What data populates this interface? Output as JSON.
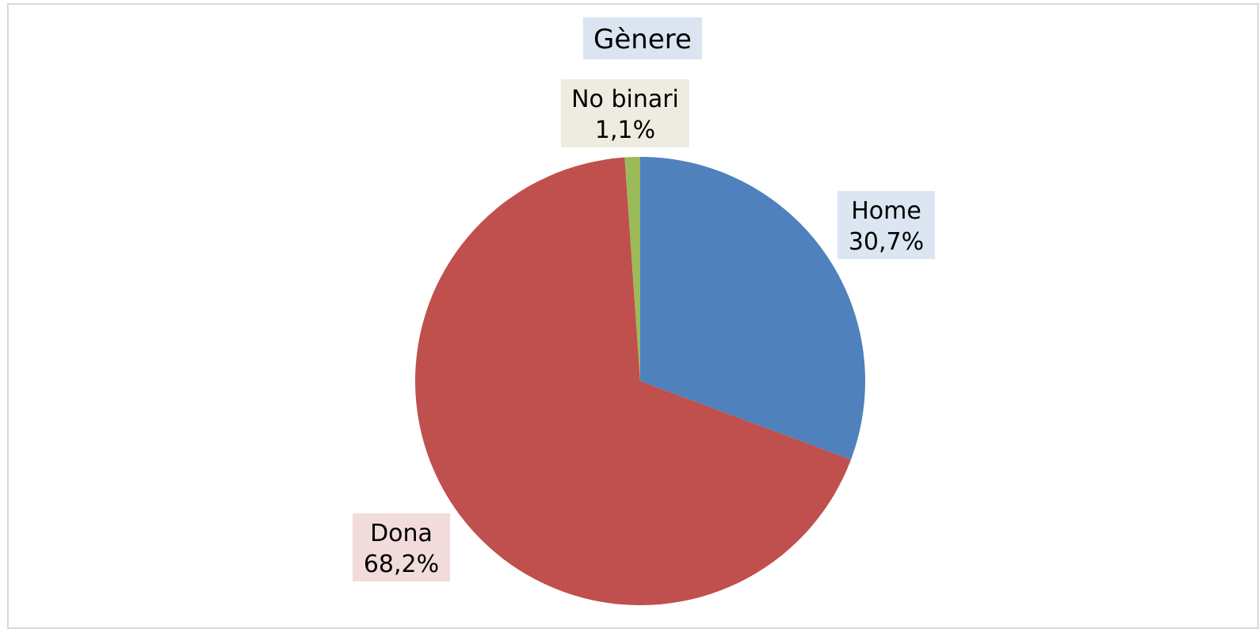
{
  "chart_data": {
    "type": "pie",
    "title": "Gènere",
    "slices": [
      {
        "name": "Home",
        "value": 30.7,
        "label_value": "30,7%",
        "color": "#4f81bd",
        "label_bg": "#dce6f2"
      },
      {
        "name": "Dona",
        "value": 68.2,
        "label_value": "68,2%",
        "color": "#c0504d",
        "label_bg": "#f2dcdb"
      },
      {
        "name": "No binari",
        "value": 1.1,
        "label_value": "1,1%",
        "color": "#9bbb59",
        "label_bg": "#eeece1"
      }
    ],
    "start_angle_deg": 0,
    "direction": "clockwise",
    "legend": "none"
  }
}
